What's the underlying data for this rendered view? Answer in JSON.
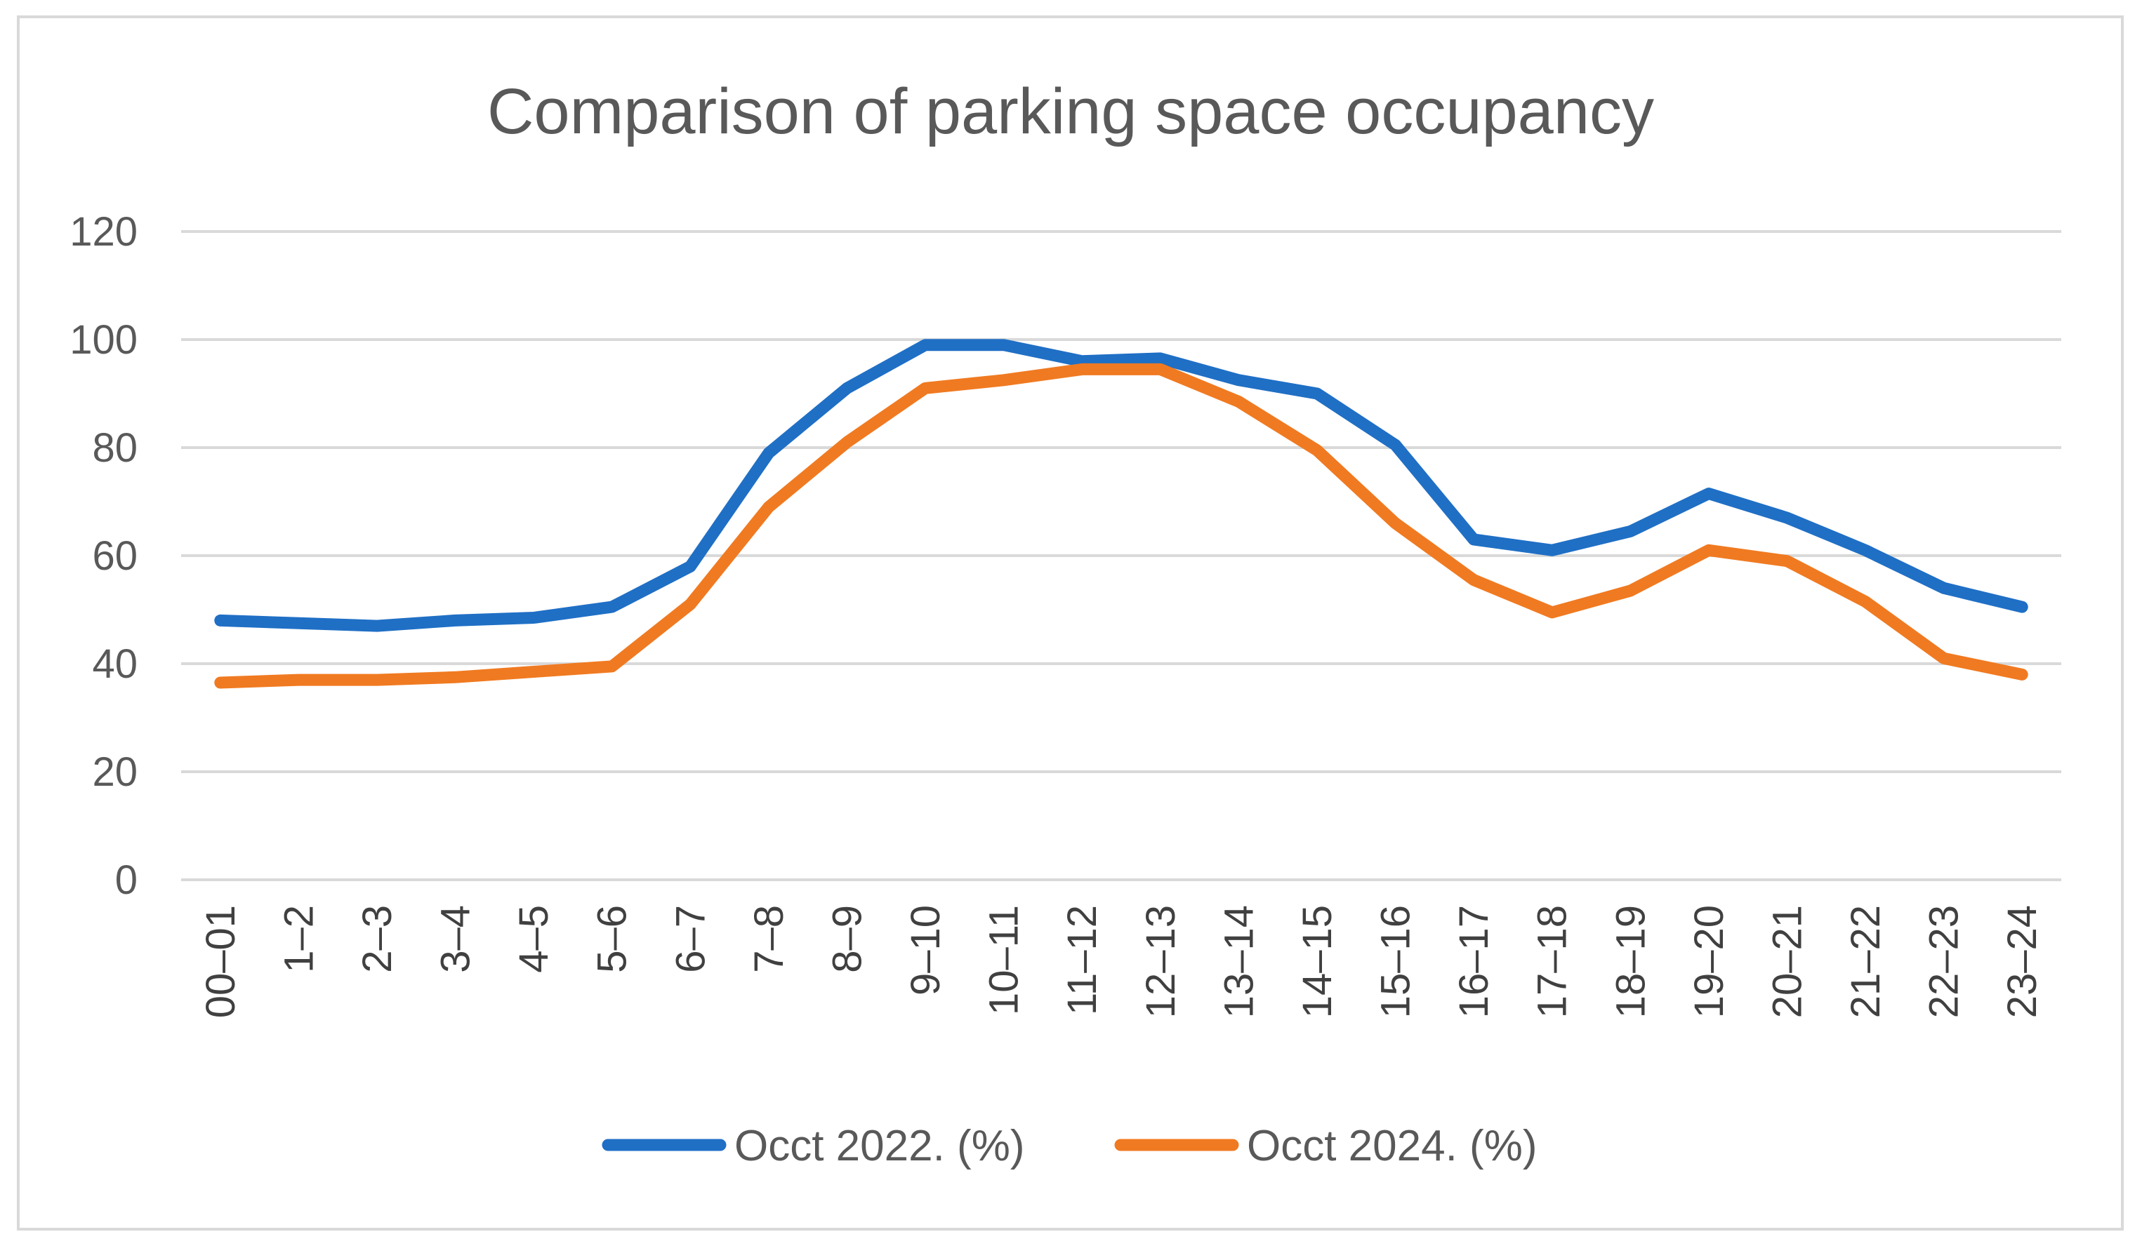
{
  "chart_data": {
    "type": "line",
    "title": "Comparison of parking space occupancy",
    "xlabel": "",
    "ylabel": "",
    "ylim": [
      0,
      120
    ],
    "yticks": [
      "0",
      "20",
      "40",
      "60",
      "80",
      "100",
      "120"
    ],
    "grid": true,
    "legend_position": "bottom",
    "categories": [
      "00–01",
      "1–2",
      "2–3",
      "3–4",
      "4–5",
      "5–6",
      "6–7",
      "7–8",
      "8–9",
      "9–10",
      "10–11",
      "11–12",
      "12–13",
      "13–14",
      "14–15",
      "15–16",
      "16–17",
      "17–18",
      "18–19",
      "19–20",
      "20–21",
      "21–22",
      "22–23",
      "23–24"
    ],
    "series": [
      {
        "name": "Occt 2022. (%)",
        "color": "#1f6fc5",
        "values": [
          48,
          47.5,
          47,
          48,
          48.5,
          50.5,
          58,
          79,
          91,
          99,
          99,
          96,
          96.5,
          92.5,
          90,
          80.5,
          63,
          61,
          64.5,
          71.5,
          67,
          61,
          54,
          50.5
        ]
      },
      {
        "name": "Occt 2024. (%)",
        "color": "#f07a21",
        "values": [
          36.5,
          37,
          37,
          37.5,
          38.5,
          39.5,
          51,
          69,
          81,
          91,
          92.5,
          94.5,
          94.5,
          88.5,
          79.5,
          66,
          55.5,
          49.5,
          53.5,
          61,
          59,
          51.5,
          41,
          38
        ]
      }
    ]
  }
}
